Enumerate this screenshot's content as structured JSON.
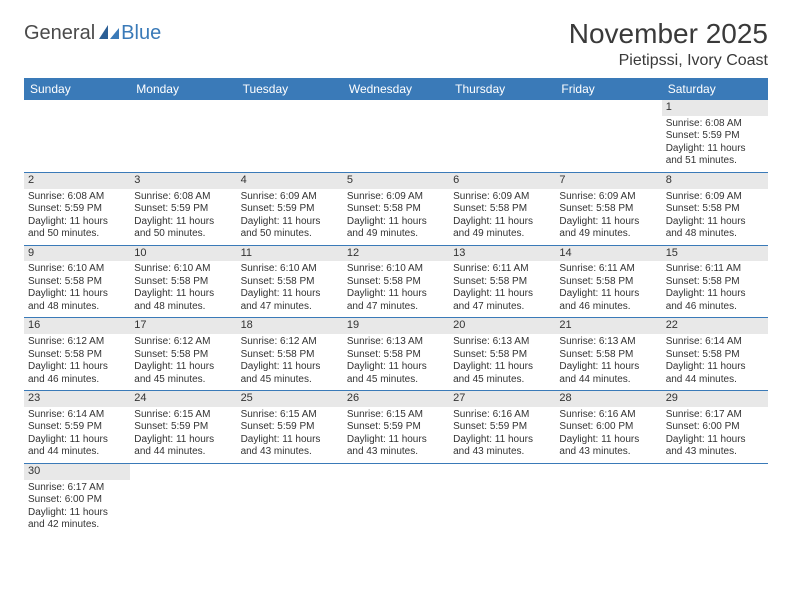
{
  "brand": {
    "part1": "General",
    "part2": "Blue"
  },
  "title": "November 2025",
  "location": "Pietipssi, Ivory Coast",
  "colors": {
    "header_bg": "#3a7ab8",
    "header_text": "#ffffff",
    "daynum_bg": "#e8e8e8",
    "border": "#3a7ab8",
    "text": "#333333",
    "background": "#ffffff"
  },
  "weekdays": [
    "Sunday",
    "Monday",
    "Tuesday",
    "Wednesday",
    "Thursday",
    "Friday",
    "Saturday"
  ],
  "grid": [
    [
      null,
      null,
      null,
      null,
      null,
      null,
      {
        "n": "1",
        "sr": "6:08 AM",
        "ss": "5:59 PM",
        "dl": "11 hours and 51 minutes."
      }
    ],
    [
      {
        "n": "2",
        "sr": "6:08 AM",
        "ss": "5:59 PM",
        "dl": "11 hours and 50 minutes."
      },
      {
        "n": "3",
        "sr": "6:08 AM",
        "ss": "5:59 PM",
        "dl": "11 hours and 50 minutes."
      },
      {
        "n": "4",
        "sr": "6:09 AM",
        "ss": "5:59 PM",
        "dl": "11 hours and 50 minutes."
      },
      {
        "n": "5",
        "sr": "6:09 AM",
        "ss": "5:58 PM",
        "dl": "11 hours and 49 minutes."
      },
      {
        "n": "6",
        "sr": "6:09 AM",
        "ss": "5:58 PM",
        "dl": "11 hours and 49 minutes."
      },
      {
        "n": "7",
        "sr": "6:09 AM",
        "ss": "5:58 PM",
        "dl": "11 hours and 49 minutes."
      },
      {
        "n": "8",
        "sr": "6:09 AM",
        "ss": "5:58 PM",
        "dl": "11 hours and 48 minutes."
      }
    ],
    [
      {
        "n": "9",
        "sr": "6:10 AM",
        "ss": "5:58 PM",
        "dl": "11 hours and 48 minutes."
      },
      {
        "n": "10",
        "sr": "6:10 AM",
        "ss": "5:58 PM",
        "dl": "11 hours and 48 minutes."
      },
      {
        "n": "11",
        "sr": "6:10 AM",
        "ss": "5:58 PM",
        "dl": "11 hours and 47 minutes."
      },
      {
        "n": "12",
        "sr": "6:10 AM",
        "ss": "5:58 PM",
        "dl": "11 hours and 47 minutes."
      },
      {
        "n": "13",
        "sr": "6:11 AM",
        "ss": "5:58 PM",
        "dl": "11 hours and 47 minutes."
      },
      {
        "n": "14",
        "sr": "6:11 AM",
        "ss": "5:58 PM",
        "dl": "11 hours and 46 minutes."
      },
      {
        "n": "15",
        "sr": "6:11 AM",
        "ss": "5:58 PM",
        "dl": "11 hours and 46 minutes."
      }
    ],
    [
      {
        "n": "16",
        "sr": "6:12 AM",
        "ss": "5:58 PM",
        "dl": "11 hours and 46 minutes."
      },
      {
        "n": "17",
        "sr": "6:12 AM",
        "ss": "5:58 PM",
        "dl": "11 hours and 45 minutes."
      },
      {
        "n": "18",
        "sr": "6:12 AM",
        "ss": "5:58 PM",
        "dl": "11 hours and 45 minutes."
      },
      {
        "n": "19",
        "sr": "6:13 AM",
        "ss": "5:58 PM",
        "dl": "11 hours and 45 minutes."
      },
      {
        "n": "20",
        "sr": "6:13 AM",
        "ss": "5:58 PM",
        "dl": "11 hours and 45 minutes."
      },
      {
        "n": "21",
        "sr": "6:13 AM",
        "ss": "5:58 PM",
        "dl": "11 hours and 44 minutes."
      },
      {
        "n": "22",
        "sr": "6:14 AM",
        "ss": "5:58 PM",
        "dl": "11 hours and 44 minutes."
      }
    ],
    [
      {
        "n": "23",
        "sr": "6:14 AM",
        "ss": "5:59 PM",
        "dl": "11 hours and 44 minutes."
      },
      {
        "n": "24",
        "sr": "6:15 AM",
        "ss": "5:59 PM",
        "dl": "11 hours and 44 minutes."
      },
      {
        "n": "25",
        "sr": "6:15 AM",
        "ss": "5:59 PM",
        "dl": "11 hours and 43 minutes."
      },
      {
        "n": "26",
        "sr": "6:15 AM",
        "ss": "5:59 PM",
        "dl": "11 hours and 43 minutes."
      },
      {
        "n": "27",
        "sr": "6:16 AM",
        "ss": "5:59 PM",
        "dl": "11 hours and 43 minutes."
      },
      {
        "n": "28",
        "sr": "6:16 AM",
        "ss": "6:00 PM",
        "dl": "11 hours and 43 minutes."
      },
      {
        "n": "29",
        "sr": "6:17 AM",
        "ss": "6:00 PM",
        "dl": "11 hours and 43 minutes."
      }
    ],
    [
      {
        "n": "30",
        "sr": "6:17 AM",
        "ss": "6:00 PM",
        "dl": "11 hours and 42 minutes."
      },
      null,
      null,
      null,
      null,
      null,
      null
    ]
  ],
  "labels": {
    "sunrise": "Sunrise:",
    "sunset": "Sunset:",
    "daylight": "Daylight:"
  }
}
